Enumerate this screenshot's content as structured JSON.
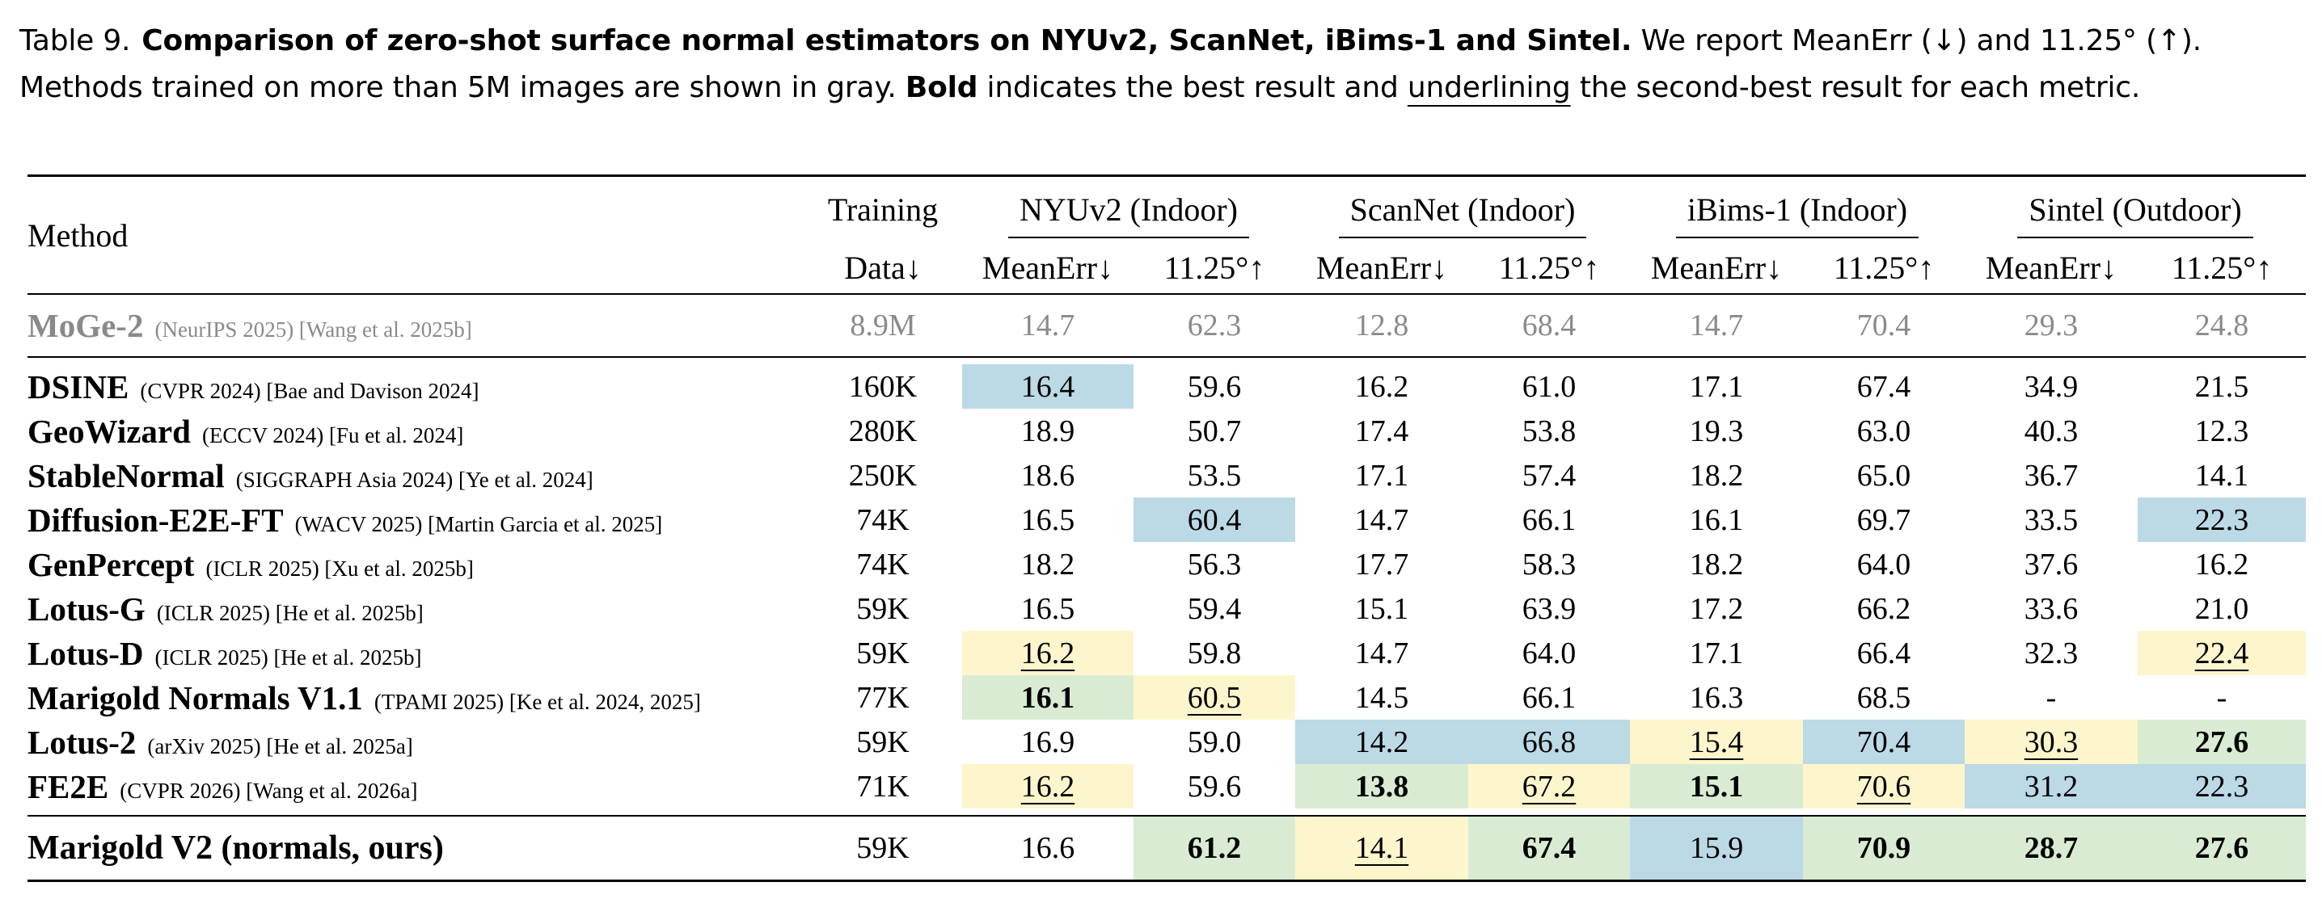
{
  "caption": {
    "label": "Table 9.",
    "title": "Comparison of zero-shot surface normal estimators on NYUv2, ScanNet, iBims-1 and Sintel.",
    "text1": " We report MeanErr (↓) and 11.25° (↑). Methods trained on more than 5M images are shown in gray. ",
    "bold_word": "Bold",
    "text2": " indicates the best result and ",
    "underline_word": "underlining",
    "text3": " the second-best result for each metric."
  },
  "header": {
    "method": "Method",
    "training_top": "Training",
    "training_bottom": "Data↓",
    "groups": [
      "NYUv2 (Indoor)",
      "ScanNet (Indoor)",
      "iBims-1 (Indoor)",
      "Sintel (Outdoor)"
    ],
    "metric_mean": "MeanErr↓",
    "metric_deg": "11.25°↑"
  },
  "highlight_colors": {
    "green": "#d9ecd3",
    "yellow": "#fdf6cc",
    "blue": "#bcd9e6"
  },
  "gray_row": {
    "name": "MoGe-2",
    "venue": "(NeurIPS 2025) [Wang et al. 2025b]",
    "data": "8.9M",
    "cells": [
      {
        "v": "14.7"
      },
      {
        "v": "62.3"
      },
      {
        "v": "12.8"
      },
      {
        "v": "68.4"
      },
      {
        "v": "14.7"
      },
      {
        "v": "70.4"
      },
      {
        "v": "29.3"
      },
      {
        "v": "24.8"
      }
    ]
  },
  "rows": [
    {
      "name": "DSINE",
      "venue": "(CVPR 2024) [Bae and Davison 2024]",
      "data": "160K",
      "cells": [
        {
          "v": "16.4",
          "hl": "blue"
        },
        {
          "v": "59.6"
        },
        {
          "v": "16.2"
        },
        {
          "v": "61.0"
        },
        {
          "v": "17.1"
        },
        {
          "v": "67.4"
        },
        {
          "v": "34.9"
        },
        {
          "v": "21.5"
        }
      ]
    },
    {
      "name": "GeoWizard",
      "venue": "(ECCV 2024) [Fu et al. 2024]",
      "data": "280K",
      "cells": [
        {
          "v": "18.9"
        },
        {
          "v": "50.7"
        },
        {
          "v": "17.4"
        },
        {
          "v": "53.8"
        },
        {
          "v": "19.3"
        },
        {
          "v": "63.0"
        },
        {
          "v": "40.3"
        },
        {
          "v": "12.3"
        }
      ]
    },
    {
      "name": "StableNormal",
      "venue": "(SIGGRAPH Asia 2024) [Ye et al. 2024]",
      "data": "250K",
      "cells": [
        {
          "v": "18.6"
        },
        {
          "v": "53.5"
        },
        {
          "v": "17.1"
        },
        {
          "v": "57.4"
        },
        {
          "v": "18.2"
        },
        {
          "v": "65.0"
        },
        {
          "v": "36.7"
        },
        {
          "v": "14.1"
        }
      ]
    },
    {
      "name": "Diffusion-E2E-FT",
      "venue": "(WACV 2025) [Martin Garcia et al. 2025]",
      "data": "74K",
      "cells": [
        {
          "v": "16.5"
        },
        {
          "v": "60.4",
          "hl": "blue"
        },
        {
          "v": "14.7"
        },
        {
          "v": "66.1"
        },
        {
          "v": "16.1"
        },
        {
          "v": "69.7"
        },
        {
          "v": "33.5"
        },
        {
          "v": "22.3",
          "hl": "blue"
        }
      ]
    },
    {
      "name": "GenPercept",
      "venue": "(ICLR 2025) [Xu et al. 2025b]",
      "data": "74K",
      "cells": [
        {
          "v": "18.2"
        },
        {
          "v": "56.3"
        },
        {
          "v": "17.7"
        },
        {
          "v": "58.3"
        },
        {
          "v": "18.2"
        },
        {
          "v": "64.0"
        },
        {
          "v": "37.6"
        },
        {
          "v": "16.2"
        }
      ]
    },
    {
      "name": "Lotus-G",
      "venue": "(ICLR 2025) [He et al. 2025b]",
      "data": "59K",
      "cells": [
        {
          "v": "16.5"
        },
        {
          "v": "59.4"
        },
        {
          "v": "15.1"
        },
        {
          "v": "63.9"
        },
        {
          "v": "17.2"
        },
        {
          "v": "66.2"
        },
        {
          "v": "33.6"
        },
        {
          "v": "21.0"
        }
      ]
    },
    {
      "name": "Lotus-D",
      "venue": "(ICLR 2025) [He et al. 2025b]",
      "data": "59K",
      "cells": [
        {
          "v": "16.2",
          "hl": "yellow",
          "u": true
        },
        {
          "v": "59.8"
        },
        {
          "v": "14.7"
        },
        {
          "v": "64.0"
        },
        {
          "v": "17.1"
        },
        {
          "v": "66.4"
        },
        {
          "v": "32.3"
        },
        {
          "v": "22.4",
          "hl": "yellow",
          "u": true
        }
      ]
    },
    {
      "name": "Marigold Normals V1.1",
      "venue": "(TPAMI 2025) [Ke et al. 2024, 2025]",
      "data": "77K",
      "cells": [
        {
          "v": "16.1",
          "hl": "green",
          "b": true
        },
        {
          "v": "60.5",
          "hl": "yellow",
          "u": true
        },
        {
          "v": "14.5"
        },
        {
          "v": "66.1"
        },
        {
          "v": "16.3"
        },
        {
          "v": "68.5"
        },
        {
          "v": "-"
        },
        {
          "v": "-"
        }
      ]
    },
    {
      "name": "Lotus-2",
      "venue": "(arXiv 2025) [He et al. 2025a]",
      "data": "59K",
      "cells": [
        {
          "v": "16.9"
        },
        {
          "v": "59.0"
        },
        {
          "v": "14.2",
          "hl": "blue"
        },
        {
          "v": "66.8",
          "hl": "blue"
        },
        {
          "v": "15.4",
          "hl": "yellow",
          "u": true
        },
        {
          "v": "70.4",
          "hl": "blue"
        },
        {
          "v": "30.3",
          "hl": "yellow",
          "u": true
        },
        {
          "v": "27.6",
          "hl": "green",
          "b": true
        }
      ]
    },
    {
      "name": "FE2E",
      "venue": "(CVPR 2026) [Wang et al. 2026a]",
      "data": "71K",
      "cells": [
        {
          "v": "16.2",
          "hl": "yellow",
          "u": true
        },
        {
          "v": "59.6"
        },
        {
          "v": "13.8",
          "hl": "green",
          "b": true
        },
        {
          "v": "67.2",
          "hl": "yellow",
          "u": true
        },
        {
          "v": "15.1",
          "hl": "green",
          "b": true
        },
        {
          "v": "70.6",
          "hl": "yellow",
          "u": true
        },
        {
          "v": "31.2",
          "hl": "blue"
        },
        {
          "v": "22.3",
          "hl": "blue"
        }
      ]
    }
  ],
  "final_row": {
    "name": "Marigold V2 (normals, ours)",
    "venue": "",
    "data": "59K",
    "cells": [
      {
        "v": "16.6"
      },
      {
        "v": "61.2",
        "hl": "green",
        "b": true
      },
      {
        "v": "14.1",
        "hl": "yellow",
        "u": true
      },
      {
        "v": "67.4",
        "hl": "green",
        "b": true
      },
      {
        "v": "15.9",
        "hl": "blue"
      },
      {
        "v": "70.9",
        "hl": "green",
        "b": true
      },
      {
        "v": "28.7",
        "hl": "green",
        "b": true
      },
      {
        "v": "27.6",
        "hl": "green",
        "b": true
      }
    ]
  }
}
